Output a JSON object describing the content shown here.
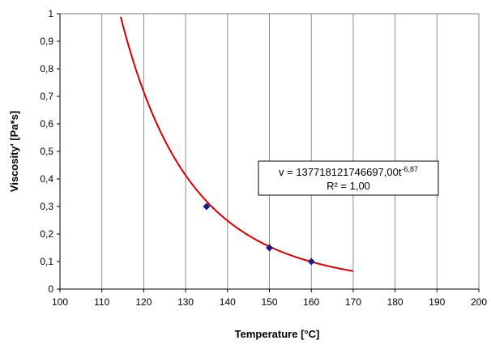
{
  "chart_data": {
    "type": "scatter",
    "xlabel": "Temperature [°C]",
    "ylabel": "Viscosity' [Pa*s]",
    "xlim": [
      100,
      200
    ],
    "ylim": [
      0,
      1
    ],
    "xticks": [
      "100",
      "110",
      "120",
      "130",
      "140",
      "150",
      "160",
      "170",
      "180",
      "190",
      "200"
    ],
    "yticks": [
      "0",
      "0,1",
      "0,2",
      "0,3",
      "0,4",
      "0,5",
      "0,6",
      "0,7",
      "0,8",
      "0,9",
      "1"
    ],
    "grid": "vertical",
    "series": [
      {
        "points": [
          {
            "x": 135,
            "y": 0.3
          },
          {
            "x": 150,
            "y": 0.15
          },
          {
            "x": 160,
            "y": 0.1
          }
        ],
        "color": "#1a1a8c"
      }
    ],
    "trendline": {
      "type": "power",
      "coefficient": 137718121746697,
      "exponent": -6.87,
      "x_range": [
        100,
        170
      ],
      "color": "#d40000"
    },
    "annotation": {
      "equation_prefix": "v = 137718121746697,00t",
      "equation_exponent": "-6,87",
      "r_squared": "R² = 1,00"
    }
  }
}
